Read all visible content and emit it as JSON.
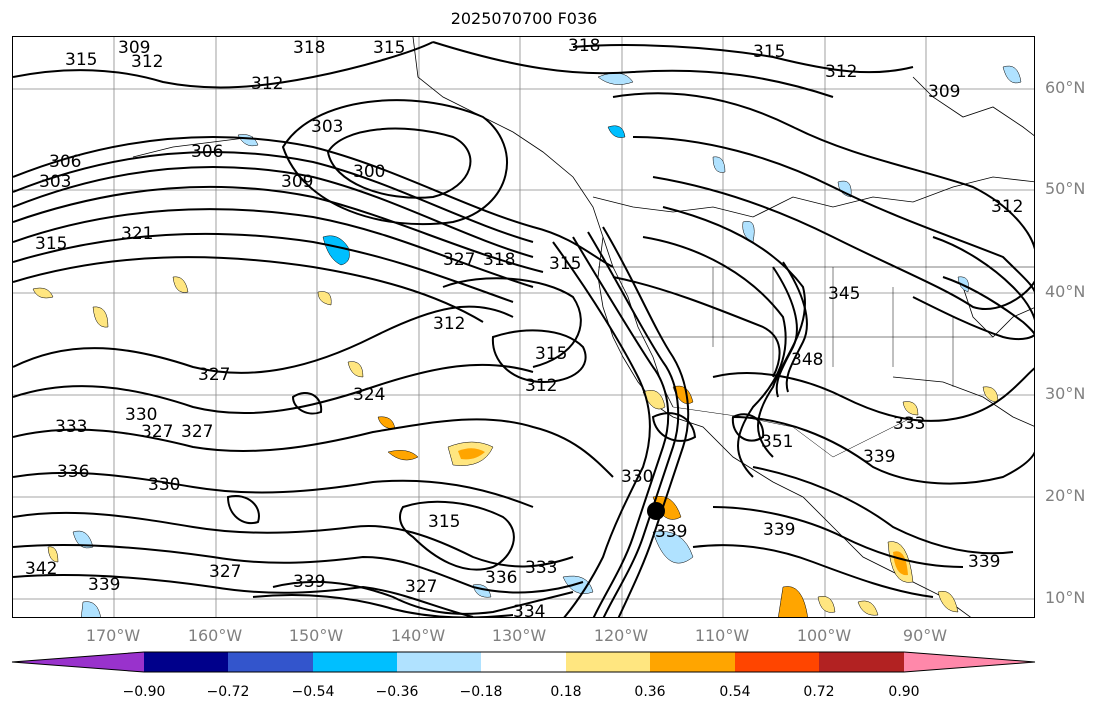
{
  "title": "2025070700 F036",
  "lat_labels": [
    "60°N",
    "50°N",
    "40°N",
    "30°N",
    "20°N",
    "10°N"
  ],
  "lon_labels": [
    "170°W",
    "160°W",
    "150°W",
    "140°W",
    "130°W",
    "120°W",
    "110°W",
    "100°W",
    "90°W"
  ],
  "contour_labels": [
    "315",
    "309",
    "312",
    "318",
    "315",
    "318",
    "315",
    "312",
    "312",
    "303",
    "306",
    "303",
    "300",
    "306",
    "309",
    "315",
    "321",
    "327",
    "318",
    "315",
    "312",
    "309",
    "312",
    "315",
    "312",
    "327",
    "333",
    "330",
    "324",
    "327",
    "327",
    "330",
    "336",
    "342",
    "339",
    "327",
    "339",
    "327",
    "336",
    "333",
    "315",
    "334",
    "330",
    "339",
    "339",
    "345",
    "348",
    "351",
    "339",
    "333",
    "339"
  ],
  "colorbar": {
    "ticks": [
      "−0.90",
      "−0.72",
      "−0.54",
      "−0.36",
      "−0.18",
      "0.18",
      "0.36",
      "0.54",
      "0.72",
      "0.90"
    ],
    "colors": [
      "#9932cc",
      "#00008b",
      "#3355cc",
      "#00bfff",
      "#b0e2ff",
      "#ffffff",
      "#ffe680",
      "#ffa500",
      "#ff4500",
      "#b22222",
      "#ff88aa"
    ]
  },
  "marker": "storm-center-dot"
}
